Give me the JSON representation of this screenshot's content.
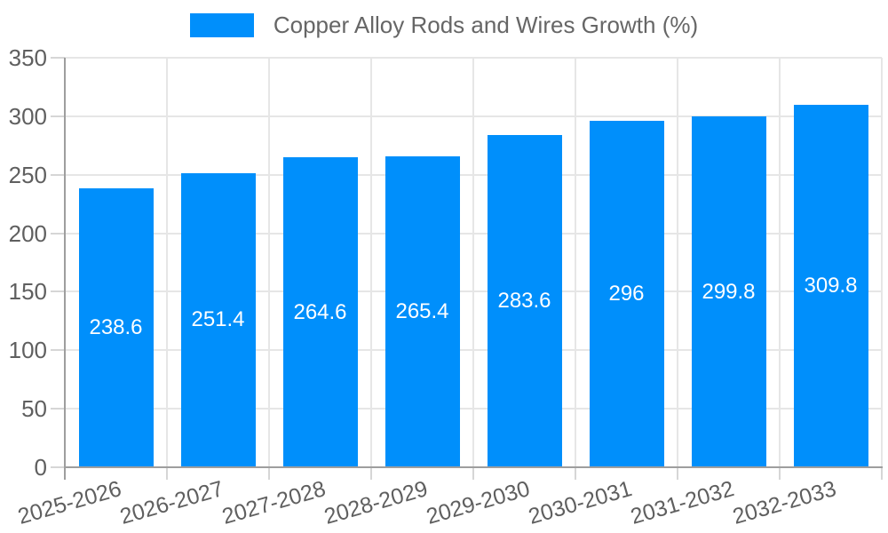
{
  "chart_data": {
    "type": "bar",
    "title": "Copper Alloy Rods and Wires Growth (%)",
    "legend_position": "top-center",
    "categories": [
      "2025-2026",
      "2026-2027",
      "2027-2028",
      "2028-2029",
      "2029-2030",
      "2030-2031",
      "2031-2032",
      "2032-2033"
    ],
    "values": [
      238.6,
      251.4,
      264.6,
      265.4,
      283.6,
      296,
      299.8,
      309.8
    ],
    "value_labels": [
      "238.6",
      "251.4",
      "264.6",
      "265.4",
      "283.6",
      "296",
      "299.8",
      "309.8"
    ],
    "xlabel": "",
    "ylabel": "",
    "ylim": [
      0,
      350
    ],
    "ytick_step": 50,
    "ytick_labels": [
      "0",
      "50",
      "100",
      "150",
      "200",
      "250",
      "300",
      "350"
    ],
    "grid": true,
    "bar_label_position": "center",
    "colors": {
      "bar": "#008FFB",
      "bar_label": "#FFFFFF",
      "axis_label": "#5F5F5F",
      "legend_text": "#666666",
      "grid": "#E6E6E6",
      "tick": "#D6D6D6",
      "axis_line": "#9E9E9E"
    }
  }
}
